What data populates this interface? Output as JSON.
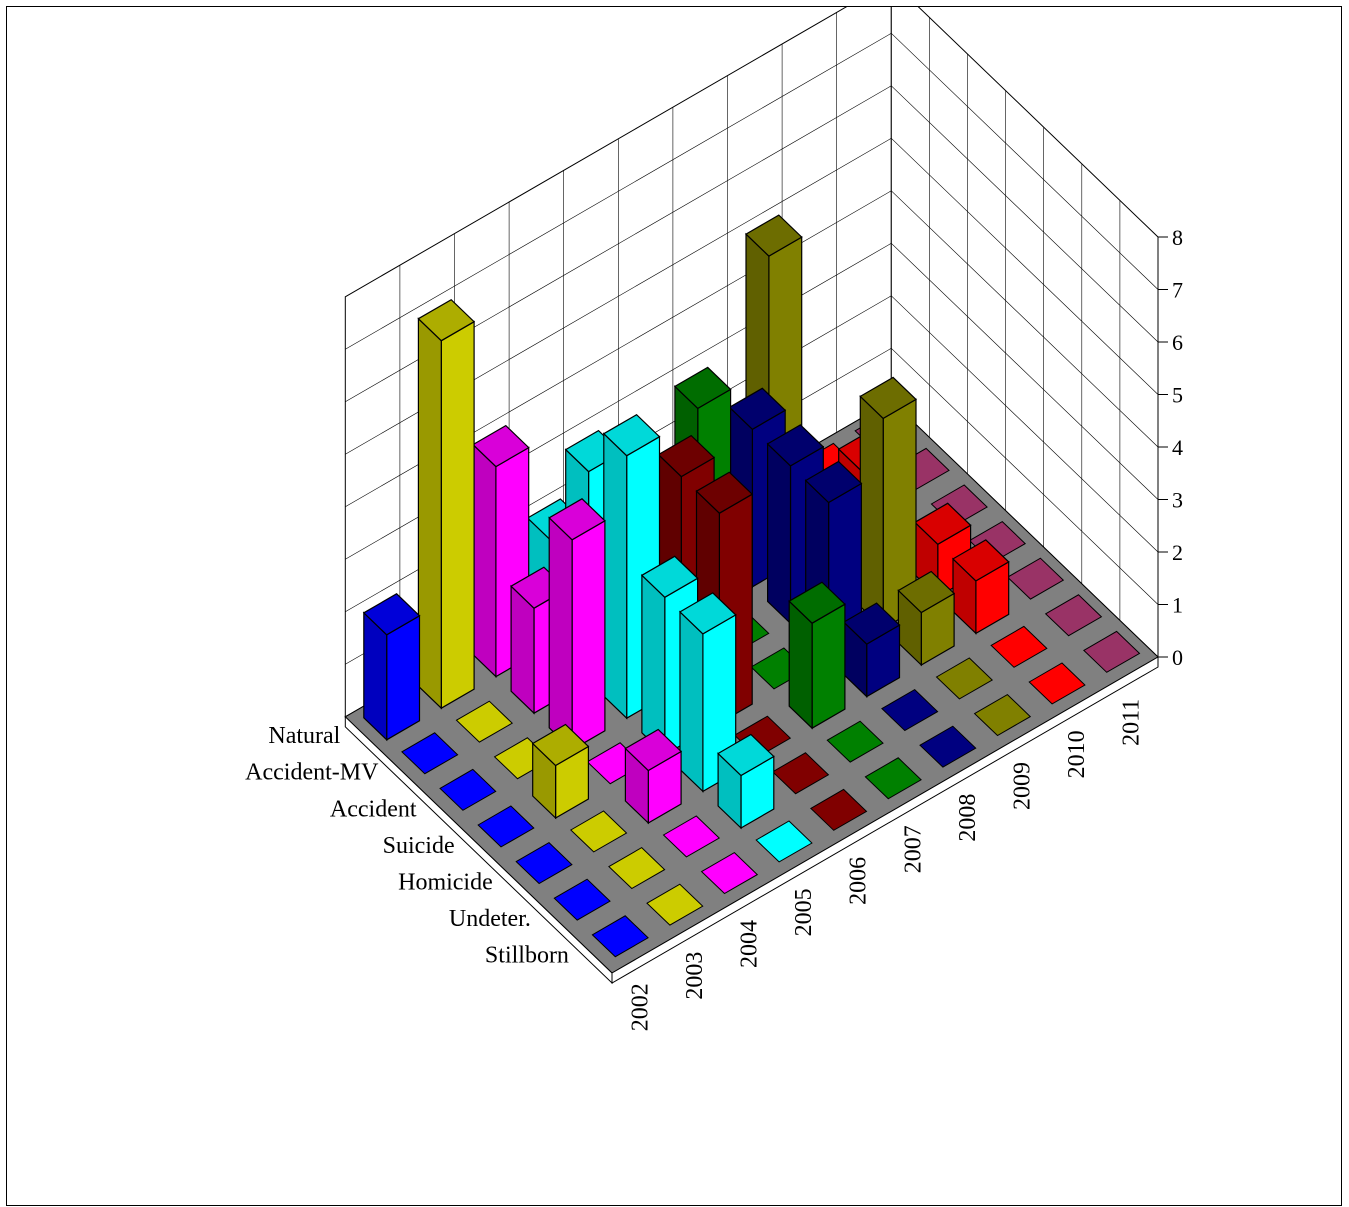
{
  "chart_data": {
    "type": "bar",
    "subtype": "3d-bar-grid",
    "title": "",
    "xlabel": "",
    "ylabel": "",
    "zlabel": "",
    "categories": [
      "Natural",
      "Accident-MV",
      "Accident",
      "Suicide",
      "Homicide",
      "Undeter.",
      "Stillborn"
    ],
    "years": [
      "2002",
      "2003",
      "2004",
      "2005",
      "2006",
      "2007",
      "2008",
      "2009",
      "2010",
      "2011"
    ],
    "zlim": [
      0,
      8
    ],
    "z_ticks": [
      "0",
      "1",
      "2",
      "3",
      "4",
      "5",
      "6",
      "7",
      "8"
    ],
    "grid": true,
    "values": [
      [
        2,
        7,
        4,
        2,
        0,
        0,
        2,
        5,
        0,
        0
      ],
      [
        0,
        0,
        2,
        4,
        3,
        4,
        3,
        0,
        1,
        0
      ],
      [
        0,
        0,
        4,
        5,
        4,
        0,
        3,
        0,
        0,
        0
      ],
      [
        0,
        1,
        0,
        3,
        4,
        0,
        3,
        4,
        1,
        0
      ],
      [
        0,
        0,
        1,
        3,
        0,
        2,
        1,
        1,
        1,
        0
      ],
      [
        0,
        0,
        0,
        1,
        0,
        0,
        0,
        0,
        0,
        0
      ],
      [
        0,
        0,
        0,
        0,
        0,
        0,
        0,
        0,
        0,
        0
      ]
    ],
    "year_colors": [
      "#0000ff",
      "#cccc00",
      "#ff00ff",
      "#00ffff",
      "#800000",
      "#008000",
      "#000080",
      "#808000",
      "#ff0000",
      "#993366"
    ],
    "floor_color": "#808080"
  }
}
